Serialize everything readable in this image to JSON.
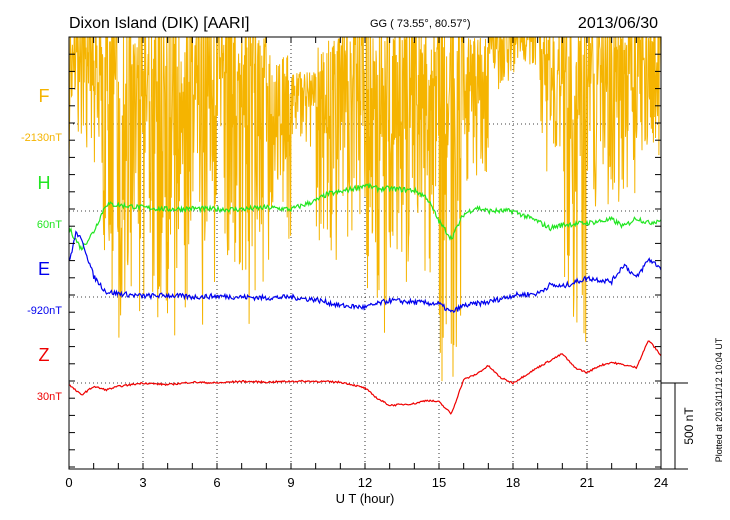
{
  "header": {
    "station": "Dixon Island (DIK)  [AARI]",
    "coords": "GG ( 73.55°,  80.57°)",
    "date": "2013/06/30"
  },
  "footer": {
    "plotted": "Plotted at 2013/11/12 10:04 UT",
    "scale_label": "500 nT"
  },
  "chart_data": {
    "type": "line",
    "title": "Dixon Island (DIK)  [AARI]",
    "xlabel": "U T (hour)",
    "ylabel": "",
    "xlim": [
      0,
      24
    ],
    "x_ticks": [
      "0",
      "3",
      "6",
      "9",
      "12",
      "15",
      "18",
      "21",
      "24"
    ],
    "y_scale_nT": 500,
    "grid": true,
    "series": [
      {
        "name": "F",
        "baseline_label": "-2130nT",
        "color": "#f5b400",
        "kind": "envelope",
        "hours": [
          0,
          1,
          2,
          3,
          4,
          5,
          6,
          7,
          8,
          9,
          10,
          11,
          12,
          13,
          14,
          15,
          16,
          17,
          18,
          19,
          20,
          21,
          22,
          23
        ],
        "min": [
          -300,
          -1100,
          -1300,
          -1400,
          -1300,
          -1200,
          -1100,
          -1200,
          -1000,
          -200,
          -900,
          -800,
          -1300,
          -1000,
          -900,
          -1600,
          -500,
          200,
          300,
          -400,
          -1400,
          -700,
          -500,
          -300
        ],
        "max": [
          600,
          600,
          600,
          600,
          600,
          600,
          600,
          600,
          400,
          300,
          500,
          600,
          600,
          600,
          600,
          600,
          500,
          600,
          600,
          600,
          600,
          600,
          600,
          600
        ]
      },
      {
        "name": "H",
        "baseline_label": "60nT",
        "color": "#22e622",
        "kind": "line",
        "hours": [
          0,
          0.5,
          1,
          1.5,
          2,
          3,
          4,
          5,
          6,
          7,
          8,
          9,
          10,
          10.5,
          11,
          12,
          12.5,
          13,
          14,
          14.5,
          15,
          15.5,
          16,
          16.5,
          17,
          18,
          19,
          19.5,
          20,
          21,
          22,
          22.5,
          23,
          23.5,
          24
        ],
        "values": [
          -100,
          -220,
          -120,
          40,
          35,
          20,
          10,
          15,
          10,
          10,
          20,
          10,
          60,
          100,
          110,
          150,
          130,
          130,
          120,
          80,
          -60,
          -160,
          -20,
          20,
          0,
          0,
          -60,
          -100,
          -80,
          -70,
          -50,
          -90,
          -40,
          -70,
          -50
        ]
      },
      {
        "name": "E",
        "baseline_label": "-920nT",
        "color": "#0000ee",
        "kind": "line",
        "hours": [
          0,
          0.3,
          0.6,
          1,
          1.5,
          2,
          3,
          4,
          5,
          6,
          7,
          8,
          9,
          9.5,
          10,
          11,
          12,
          12.5,
          13,
          14,
          15,
          15.5,
          16,
          17,
          18,
          19,
          19.5,
          20,
          21,
          22,
          22.5,
          23,
          23.5,
          24
        ],
        "values": [
          200,
          380,
          300,
          120,
          30,
          20,
          5,
          10,
          0,
          5,
          0,
          -5,
          0,
          -10,
          -15,
          -50,
          -60,
          -40,
          -20,
          -30,
          -40,
          -90,
          -50,
          -30,
          10,
          20,
          70,
          60,
          110,
          90,
          190,
          110,
          220,
          170
        ]
      },
      {
        "name": "Z",
        "baseline_label": "30nT",
        "color": "#ee0000",
        "kind": "line",
        "hours": [
          0,
          0.5,
          1,
          1.5,
          2,
          3,
          4,
          5,
          6,
          7,
          8,
          9,
          10,
          11,
          11.5,
          12,
          12.5,
          13,
          14,
          14.5,
          15,
          15.5,
          16,
          16.5,
          17,
          17.5,
          18,
          19,
          19.5,
          20,
          20.5,
          21,
          21.5,
          22,
          23,
          23.5,
          24
        ],
        "values": [
          -10,
          -70,
          -20,
          -40,
          -20,
          0,
          -10,
          5,
          0,
          10,
          5,
          10,
          10,
          5,
          -10,
          -30,
          -90,
          -130,
          -120,
          -100,
          -110,
          -180,
          20,
          50,
          100,
          30,
          0,
          90,
          130,
          170,
          90,
          60,
          100,
          120,
          90,
          250,
          160
        ]
      }
    ]
  }
}
